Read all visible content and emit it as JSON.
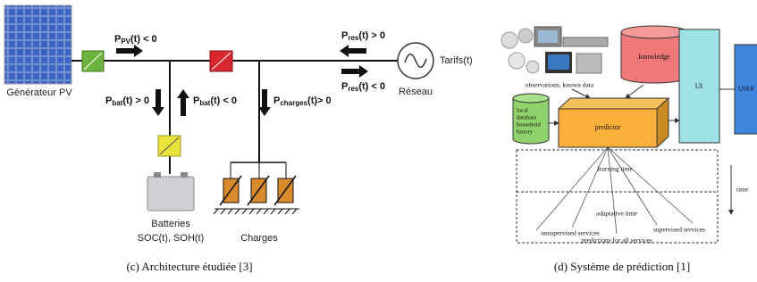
{
  "left_panel": {
    "pv_label": "Générateur PV",
    "flows": [
      {
        "symbol": "P",
        "sub": "PV",
        "rest": "(t) < 0"
      },
      {
        "symbol": "P",
        "sub": "res",
        "rest": "(t) > 0"
      },
      {
        "symbol": "P",
        "sub": "res",
        "rest": "(t) < 0"
      },
      {
        "symbol": "P",
        "sub": "bat",
        "rest": "(t) > 0"
      },
      {
        "symbol": "P",
        "sub": "bat",
        "rest": "(t) < 0"
      },
      {
        "symbol": "P",
        "sub": "charges",
        "rest": "(t)> 0"
      }
    ],
    "grid_tariff": "Tarifs(t)",
    "grid_label": "Réseau",
    "battery_label": [
      "Batteries",
      "SOC(t), SOH(t)"
    ],
    "loads_label": "Charges",
    "caption": "(c) Architecture étudiée [3]"
  },
  "right_panel": {
    "observations": "observations, known data",
    "knowledge": "knowledge",
    "ui": "UI",
    "user": "USER",
    "local_database": [
      "local",
      "database",
      "household",
      "history"
    ],
    "predictor": "predictor",
    "learning_time": "learning time",
    "adaptative_time": "adaptative time",
    "unsupervised": "unsupervised services",
    "supervised": "supervised services",
    "predictions_all": "predictions for all services",
    "time": "time",
    "caption": "(d) Système de prédiction [1]"
  }
}
